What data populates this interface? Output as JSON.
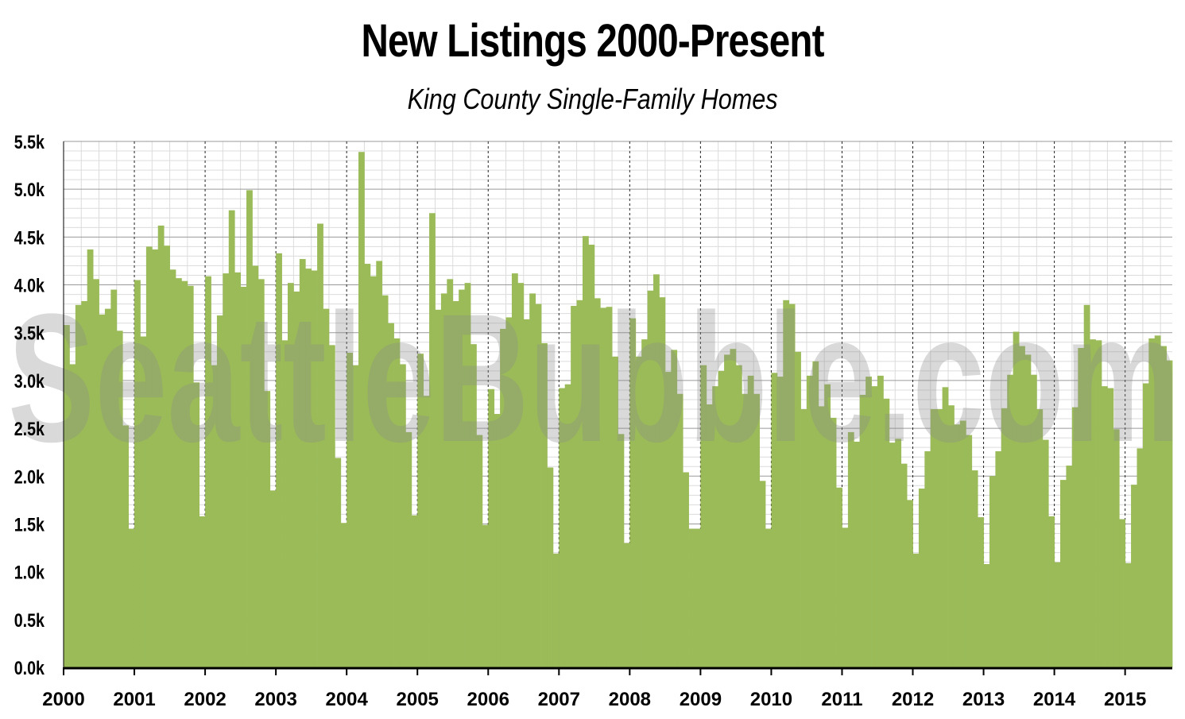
{
  "chart_data": {
    "type": "bar",
    "title": "New Listings 2000-Present",
    "subtitle": "King County Single-Family Homes",
    "xlabel": "",
    "ylabel": "",
    "watermark": "SeattleBubble.com",
    "bar_color": "#9bbb59",
    "ylim": [
      0,
      5500
    ],
    "y_ticks": [
      "0.0k",
      "0.5k",
      "1.0k",
      "1.5k",
      "2.0k",
      "2.5k",
      "3.0k",
      "3.5k",
      "4.0k",
      "4.5k",
      "5.0k",
      "5.5k"
    ],
    "x_tick_labels": [
      "2000",
      "2001",
      "2002",
      "2003",
      "2004",
      "2005",
      "2006",
      "2007",
      "2008",
      "2009",
      "2010",
      "2011",
      "2012",
      "2013",
      "2014",
      "2015"
    ],
    "grid": true,
    "legend": "none",
    "start": "2000-01",
    "values": [
      3580,
      3170,
      3790,
      3830,
      4370,
      4060,
      3690,
      3750,
      3950,
      3520,
      2530,
      1450,
      4050,
      3460,
      4400,
      4370,
      4620,
      4410,
      4160,
      4070,
      4040,
      3990,
      2980,
      1580,
      4090,
      3160,
      3680,
      4120,
      4780,
      4130,
      3980,
      4990,
      4200,
      4060,
      2890,
      1850,
      4330,
      3420,
      4020,
      3930,
      4270,
      4170,
      4150,
      4640,
      3750,
      3370,
      2190,
      1510,
      3290,
      3160,
      5390,
      4220,
      4090,
      4250,
      3890,
      3600,
      3440,
      3170,
      2460,
      1590,
      3280,
      2840,
      4750,
      3740,
      3910,
      4060,
      3830,
      3950,
      4020,
      3380,
      2430,
      1490,
      2910,
      2650,
      3540,
      3660,
      4120,
      4020,
      3640,
      3910,
      3800,
      3390,
      2090,
      1190,
      2920,
      2960,
      3780,
      3840,
      4510,
      4420,
      3860,
      3760,
      3770,
      3250,
      2440,
      1300,
      3650,
      3250,
      3430,
      3940,
      4110,
      3870,
      3090,
      3320,
      2860,
      2040,
      1450,
      1450,
      3160,
      2750,
      2940,
      3100,
      3270,
      3330,
      3160,
      2860,
      3050,
      2860,
      1950,
      1450,
      3080,
      3040,
      3840,
      3800,
      3300,
      2700,
      3050,
      3200,
      2730,
      2960,
      2610,
      1880,
      1460,
      2460,
      2360,
      2850,
      3040,
      2940,
      3050,
      2810,
      2350,
      2390,
      2130,
      1750,
      1190,
      1870,
      2260,
      2700,
      2700,
      2930,
      2740,
      2540,
      2580,
      2430,
      2060,
      1570,
      1080,
      2000,
      2260,
      2710,
      3060,
      3510,
      3360,
      3270,
      3060,
      2700,
      2380,
      1580,
      1100,
      1960,
      2110,
      2720,
      3340,
      3790,
      3430,
      3420,
      2940,
      2920,
      2490,
      1550,
      1090,
      1910,
      2290,
      2970,
      3440,
      3470,
      3360,
      3210
    ]
  }
}
